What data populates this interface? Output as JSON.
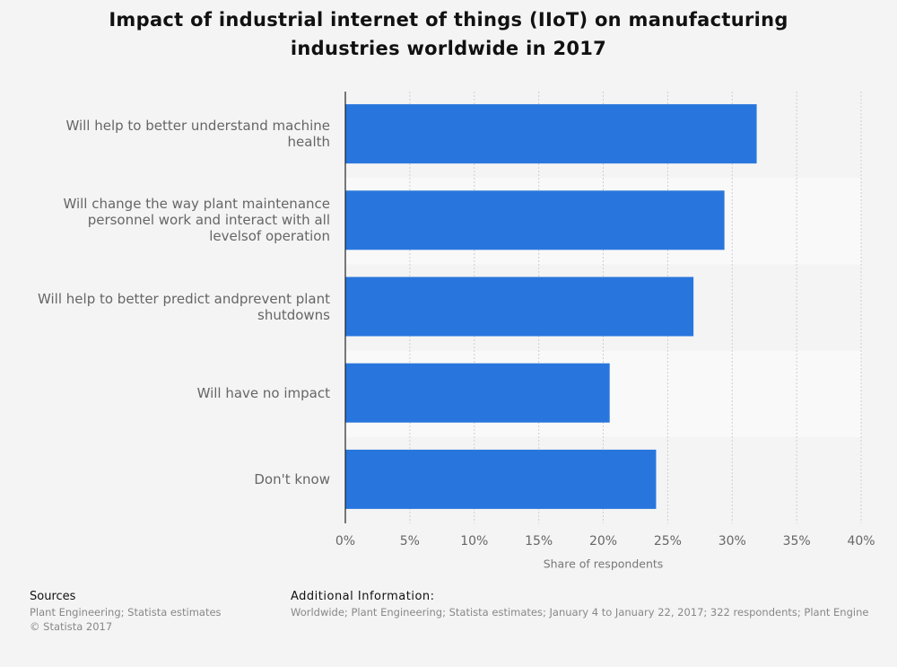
{
  "chart_data": {
    "type": "bar",
    "orientation": "horizontal",
    "title": "Impact of industrial internet of things (IIoT) on manufacturing industries worldwide in 2017",
    "categories": [
      "Will help to better understand machine health",
      "Will change the way plant maintenance personnel work and interact with all levelsof operation",
      "Will help to better predict andprevent plant shutdowns",
      "Will have no impact",
      "Don't know"
    ],
    "values": [
      31.9,
      29.4,
      27.0,
      20.5,
      24.1
    ],
    "color": "#2876dd",
    "x_label": "Share of respondents",
    "xlim": [
      0,
      40
    ],
    "xticks": [
      {
        "value": 0,
        "label": "0%"
      },
      {
        "value": 5,
        "label": "5%"
      },
      {
        "value": 10,
        "label": "10%"
      },
      {
        "value": 15,
        "label": "15%"
      },
      {
        "value": 20,
        "label": "20%"
      },
      {
        "value": 25,
        "label": "25%"
      },
      {
        "value": 30,
        "label": "30%"
      },
      {
        "value": 35,
        "label": "35%"
      },
      {
        "value": 40,
        "label": "40%"
      }
    ],
    "grid": true
  },
  "footer": {
    "sources_title": "Sources",
    "sources": [
      "Plant Engineering; Statista estimates",
      "© Statista 2017"
    ],
    "info_title": "Additional Information:",
    "info": "Worldwide; Plant Engineering; Statista estimates; January 4 to January 22, 2017; 322 respondents; Plant Engine"
  }
}
